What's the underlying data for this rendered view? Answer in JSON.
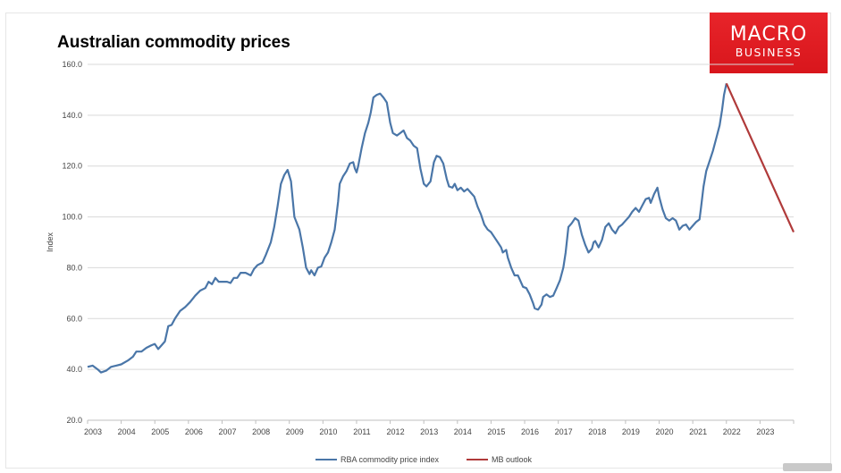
{
  "header": {
    "title": "Australian commodity prices",
    "logo_line1": "MACRO",
    "logo_line2": "BUSINESS"
  },
  "colors": {
    "history": "#4a76a8",
    "outlook": "#b03a3a",
    "grid": "#d9d9d9",
    "logo": "#e0191f"
  },
  "chart_data": {
    "type": "line",
    "title": "Australian commodity prices",
    "xlabel": "",
    "ylabel": "Index",
    "xlim": [
      2003.0,
      2024.0
    ],
    "ylim": [
      20,
      160
    ],
    "yticks": [
      20,
      40,
      60,
      80,
      100,
      120,
      140,
      160
    ],
    "ytick_labels": [
      "20.0",
      "40.0",
      "60.0",
      "80.0",
      "100.0",
      "120.0",
      "140.0",
      "160.0"
    ],
    "xticks": [
      2003,
      2004,
      2005,
      2006,
      2007,
      2008,
      2009,
      2010,
      2011,
      2012,
      2013,
      2014,
      2015,
      2016,
      2017,
      2018,
      2019,
      2020,
      2021,
      2022,
      2023
    ],
    "xtick_labels": [
      "2003",
      "2004",
      "2005",
      "2006",
      "2007",
      "2008",
      "2009",
      "2010",
      "2011",
      "2012",
      "2013",
      "2014",
      "2015",
      "2016",
      "2017",
      "2018",
      "2019",
      "2020",
      "2021",
      "2022",
      "2023"
    ],
    "grid": true,
    "legend_position": "bottom-center",
    "series": [
      {
        "name": "RBA commodity price index",
        "points": [
          [
            2003.0,
            41
          ],
          [
            2003.15,
            41.5
          ],
          [
            2003.3,
            40
          ],
          [
            2003.4,
            38.8
          ],
          [
            2003.55,
            39.5
          ],
          [
            2003.7,
            41
          ],
          [
            2003.85,
            41.5
          ],
          [
            2004.0,
            42
          ],
          [
            2004.2,
            43.5
          ],
          [
            2004.35,
            45
          ],
          [
            2004.45,
            47
          ],
          [
            2004.6,
            47
          ],
          [
            2004.75,
            48.5
          ],
          [
            2004.9,
            49.5
          ],
          [
            2005.0,
            50
          ],
          [
            2005.1,
            48
          ],
          [
            2005.2,
            49.5
          ],
          [
            2005.3,
            51
          ],
          [
            2005.4,
            57
          ],
          [
            2005.5,
            57.5
          ],
          [
            2005.6,
            60
          ],
          [
            2005.75,
            63
          ],
          [
            2005.9,
            64.5
          ],
          [
            2006.05,
            66.5
          ],
          [
            2006.2,
            69
          ],
          [
            2006.35,
            71
          ],
          [
            2006.5,
            72
          ],
          [
            2006.6,
            74.5
          ],
          [
            2006.7,
            73.5
          ],
          [
            2006.8,
            76
          ],
          [
            2006.9,
            74.5
          ],
          [
            2007.0,
            74.5
          ],
          [
            2007.15,
            74.5
          ],
          [
            2007.25,
            74
          ],
          [
            2007.35,
            76
          ],
          [
            2007.45,
            76
          ],
          [
            2007.55,
            78
          ],
          [
            2007.7,
            78
          ],
          [
            2007.85,
            77
          ],
          [
            2007.95,
            79.5
          ],
          [
            2008.05,
            81
          ],
          [
            2008.2,
            82
          ],
          [
            2008.3,
            85
          ],
          [
            2008.45,
            90
          ],
          [
            2008.55,
            96
          ],
          [
            2008.65,
            104
          ],
          [
            2008.75,
            113
          ],
          [
            2008.85,
            116.5
          ],
          [
            2008.95,
            118.5
          ],
          [
            2009.05,
            114
          ],
          [
            2009.15,
            100
          ],
          [
            2009.3,
            95
          ],
          [
            2009.4,
            88
          ],
          [
            2009.5,
            80
          ],
          [
            2009.6,
            77.5
          ],
          [
            2009.65,
            79
          ],
          [
            2009.75,
            77
          ],
          [
            2009.85,
            80
          ],
          [
            2009.95,
            80.5
          ],
          [
            2010.05,
            84
          ],
          [
            2010.15,
            86
          ],
          [
            2010.25,
            90
          ],
          [
            2010.35,
            95
          ],
          [
            2010.45,
            106
          ],
          [
            2010.5,
            113
          ],
          [
            2010.6,
            116
          ],
          [
            2010.7,
            118
          ],
          [
            2010.8,
            121
          ],
          [
            2010.9,
            121.5
          ],
          [
            2010.95,
            119
          ],
          [
            2011.0,
            117.5
          ],
          [
            2011.05,
            120
          ],
          [
            2011.15,
            127
          ],
          [
            2011.25,
            133
          ],
          [
            2011.35,
            137
          ],
          [
            2011.42,
            141
          ],
          [
            2011.5,
            147
          ],
          [
            2011.6,
            148
          ],
          [
            2011.7,
            148.5
          ],
          [
            2011.8,
            147
          ],
          [
            2011.9,
            145
          ],
          [
            2012.0,
            137
          ],
          [
            2012.08,
            133
          ],
          [
            2012.2,
            132
          ],
          [
            2012.3,
            133
          ],
          [
            2012.4,
            134
          ],
          [
            2012.5,
            131
          ],
          [
            2012.6,
            130
          ],
          [
            2012.7,
            128
          ],
          [
            2012.8,
            127
          ],
          [
            2012.9,
            119
          ],
          [
            2013.0,
            113
          ],
          [
            2013.08,
            112
          ],
          [
            2013.2,
            114
          ],
          [
            2013.3,
            121.5
          ],
          [
            2013.38,
            124
          ],
          [
            2013.48,
            123.5
          ],
          [
            2013.58,
            121
          ],
          [
            2013.68,
            115
          ],
          [
            2013.75,
            112
          ],
          [
            2013.85,
            111.5
          ],
          [
            2013.92,
            113
          ],
          [
            2014.0,
            110.5
          ],
          [
            2014.1,
            111.5
          ],
          [
            2014.2,
            110
          ],
          [
            2014.3,
            111
          ],
          [
            2014.4,
            109.5
          ],
          [
            2014.5,
            108
          ],
          [
            2014.6,
            104
          ],
          [
            2014.7,
            101
          ],
          [
            2014.8,
            97
          ],
          [
            2014.9,
            95
          ],
          [
            2015.0,
            94
          ],
          [
            2015.1,
            92
          ],
          [
            2015.2,
            90
          ],
          [
            2015.3,
            88
          ],
          [
            2015.35,
            86
          ],
          [
            2015.45,
            87
          ],
          [
            2015.5,
            84
          ],
          [
            2015.6,
            80
          ],
          [
            2015.7,
            77
          ],
          [
            2015.8,
            77
          ],
          [
            2015.85,
            75.5
          ],
          [
            2015.95,
            72.5
          ],
          [
            2016.05,
            72
          ],
          [
            2016.15,
            69.5
          ],
          [
            2016.25,
            66
          ],
          [
            2016.3,
            64
          ],
          [
            2016.4,
            63.5
          ],
          [
            2016.5,
            65.5
          ],
          [
            2016.55,
            68.5
          ],
          [
            2016.65,
            69.5
          ],
          [
            2016.75,
            68.5
          ],
          [
            2016.85,
            69
          ],
          [
            2016.95,
            72
          ],
          [
            2017.05,
            75
          ],
          [
            2017.15,
            80
          ],
          [
            2017.22,
            86
          ],
          [
            2017.3,
            96
          ],
          [
            2017.4,
            97.5
          ],
          [
            2017.5,
            99.5
          ],
          [
            2017.6,
            98.5
          ],
          [
            2017.7,
            93
          ],
          [
            2017.8,
            89
          ],
          [
            2017.9,
            86
          ],
          [
            2018.0,
            87.5
          ],
          [
            2018.05,
            90
          ],
          [
            2018.1,
            90.5
          ],
          [
            2018.2,
            88
          ],
          [
            2018.3,
            91
          ],
          [
            2018.4,
            96
          ],
          [
            2018.5,
            97.5
          ],
          [
            2018.6,
            95
          ],
          [
            2018.7,
            93.5
          ],
          [
            2018.8,
            96
          ],
          [
            2018.9,
            97
          ],
          [
            2019.0,
            98.5
          ],
          [
            2019.1,
            100
          ],
          [
            2019.2,
            102
          ],
          [
            2019.3,
            103.5
          ],
          [
            2019.4,
            102
          ],
          [
            2019.5,
            104.5
          ],
          [
            2019.6,
            107
          ],
          [
            2019.7,
            107.5
          ],
          [
            2019.75,
            105.5
          ],
          [
            2019.85,
            109
          ],
          [
            2019.95,
            111.5
          ],
          [
            2020.0,
            108
          ],
          [
            2020.1,
            103
          ],
          [
            2020.2,
            99.5
          ],
          [
            2020.3,
            98.5
          ],
          [
            2020.4,
            99.5
          ],
          [
            2020.5,
            98.5
          ],
          [
            2020.6,
            95
          ],
          [
            2020.7,
            96.5
          ],
          [
            2020.8,
            97
          ],
          [
            2020.9,
            95
          ],
          [
            2021.0,
            96.5
          ],
          [
            2021.1,
            98
          ],
          [
            2021.2,
            99
          ],
          [
            2021.25,
            104
          ],
          [
            2021.32,
            112
          ],
          [
            2021.4,
            118
          ],
          [
            2021.5,
            122
          ],
          [
            2021.6,
            126
          ],
          [
            2021.7,
            131
          ],
          [
            2021.8,
            136
          ],
          [
            2021.87,
            142
          ],
          [
            2021.93,
            148
          ],
          [
            2022.0,
            152.5
          ]
        ]
      },
      {
        "name": "MB outlook",
        "points": [
          [
            2022.0,
            152.5
          ],
          [
            2024.0,
            94
          ]
        ]
      }
    ]
  }
}
